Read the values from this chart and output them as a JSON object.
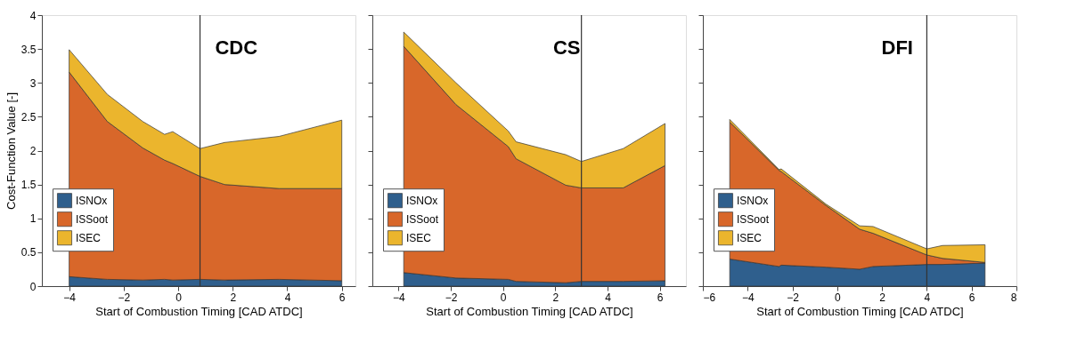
{
  "chart_data": [
    {
      "type": "area",
      "stacked": true,
      "title": "CDC",
      "xlabel": "Start of Combustion Timing [CAD ATDC]",
      "ylabel": "Cost-Function Value [-]",
      "x": [
        -4,
        -2.6,
        -1.3,
        -0.5,
        -0.2,
        0.8,
        1.7,
        3.7,
        6
      ],
      "xlim": [
        -5,
        6.5
      ],
      "xticks": [
        -4,
        -2,
        0,
        2,
        4,
        6
      ],
      "ylim": [
        0,
        4
      ],
      "yticks": [
        0,
        0.5,
        1,
        1.5,
        2,
        2.5,
        3,
        3.5,
        4
      ],
      "grid": false,
      "legend": "left",
      "series": [
        {
          "name": "ISNOx",
          "color": "#2f5f8d",
          "values": [
            0.14,
            0.1,
            0.09,
            0.1,
            0.09,
            0.1,
            0.09,
            0.1,
            0.08
          ]
        },
        {
          "name": "ISSoot",
          "color": "#d8672a",
          "values": [
            3.02,
            2.33,
            1.95,
            1.76,
            1.72,
            1.52,
            1.41,
            1.34,
            1.36
          ]
        },
        {
          "name": "ISEC",
          "color": "#ebb52d",
          "values": [
            0.33,
            0.4,
            0.39,
            0.38,
            0.47,
            0.41,
            0.62,
            0.77,
            1.01
          ]
        }
      ],
      "ref_lines": [
        {
          "axis": "x",
          "value": 0.8,
          "color": "#333333"
        }
      ]
    },
    {
      "type": "area",
      "stacked": true,
      "title": "CS",
      "xlabel": "Start of Combustion Timing [CAD ATDC]",
      "x": [
        -3.8,
        -1.8,
        0.2,
        0.5,
        2.4,
        3,
        4.6,
        6.2
      ],
      "xlim": [
        -5,
        7
      ],
      "xticks": [
        -4,
        -2,
        0,
        2,
        4,
        6
      ],
      "ylim": [
        0,
        4
      ],
      "yticks": [
        0,
        0.5,
        1,
        1.5,
        2,
        2.5,
        3,
        3.5,
        4
      ],
      "tick_labels": "x",
      "grid": false,
      "legend": "left",
      "series": [
        {
          "name": "ISNOx",
          "color": "#2f5f8d",
          "values": [
            0.2,
            0.12,
            0.1,
            0.07,
            0.05,
            0.07,
            0.07,
            0.08
          ]
        },
        {
          "name": "ISSoot",
          "color": "#d8672a",
          "values": [
            3.34,
            2.56,
            1.96,
            1.81,
            1.44,
            1.38,
            1.38,
            1.7
          ]
        },
        {
          "name": "ISEC",
          "color": "#ebb52d",
          "values": [
            0.21,
            0.32,
            0.23,
            0.25,
            0.45,
            0.39,
            0.58,
            0.62
          ]
        }
      ],
      "ref_lines": [
        {
          "axis": "x",
          "value": 3,
          "color": "#333333"
        }
      ]
    },
    {
      "type": "area",
      "stacked": true,
      "title": "DFI",
      "xlabel": "Start of Combustion Timing [CAD ATDC]",
      "x": [
        -4.8,
        -2.6,
        -2.5,
        -0.5,
        1,
        1.6,
        4,
        4.7,
        6.6
      ],
      "xlim": [
        -6,
        8
      ],
      "xticks": [
        -6,
        -4,
        -2,
        0,
        2,
        4,
        6,
        8
      ],
      "ylim": [
        0,
        4
      ],
      "yticks": [
        0,
        0.5,
        1,
        1.5,
        2,
        2.5,
        3,
        3.5,
        4
      ],
      "tick_labels": "x",
      "grid": false,
      "legend": "left",
      "series": [
        {
          "name": "ISNOx",
          "color": "#2f5f8d",
          "values": [
            0.4,
            0.29,
            0.31,
            0.28,
            0.25,
            0.29,
            0.32,
            0.32,
            0.34
          ]
        },
        {
          "name": "ISSoot",
          "color": "#d8672a",
          "values": [
            2.02,
            1.42,
            1.38,
            0.91,
            0.59,
            0.49,
            0.14,
            0.09,
            0.01
          ]
        },
        {
          "name": "ISEC",
          "color": "#ebb52d",
          "values": [
            0.04,
            0.01,
            0.04,
            0.02,
            0.05,
            0.1,
            0.09,
            0.19,
            0.26
          ]
        }
      ],
      "ref_lines": [
        {
          "axis": "x",
          "value": 4,
          "color": "#333333"
        }
      ]
    }
  ]
}
